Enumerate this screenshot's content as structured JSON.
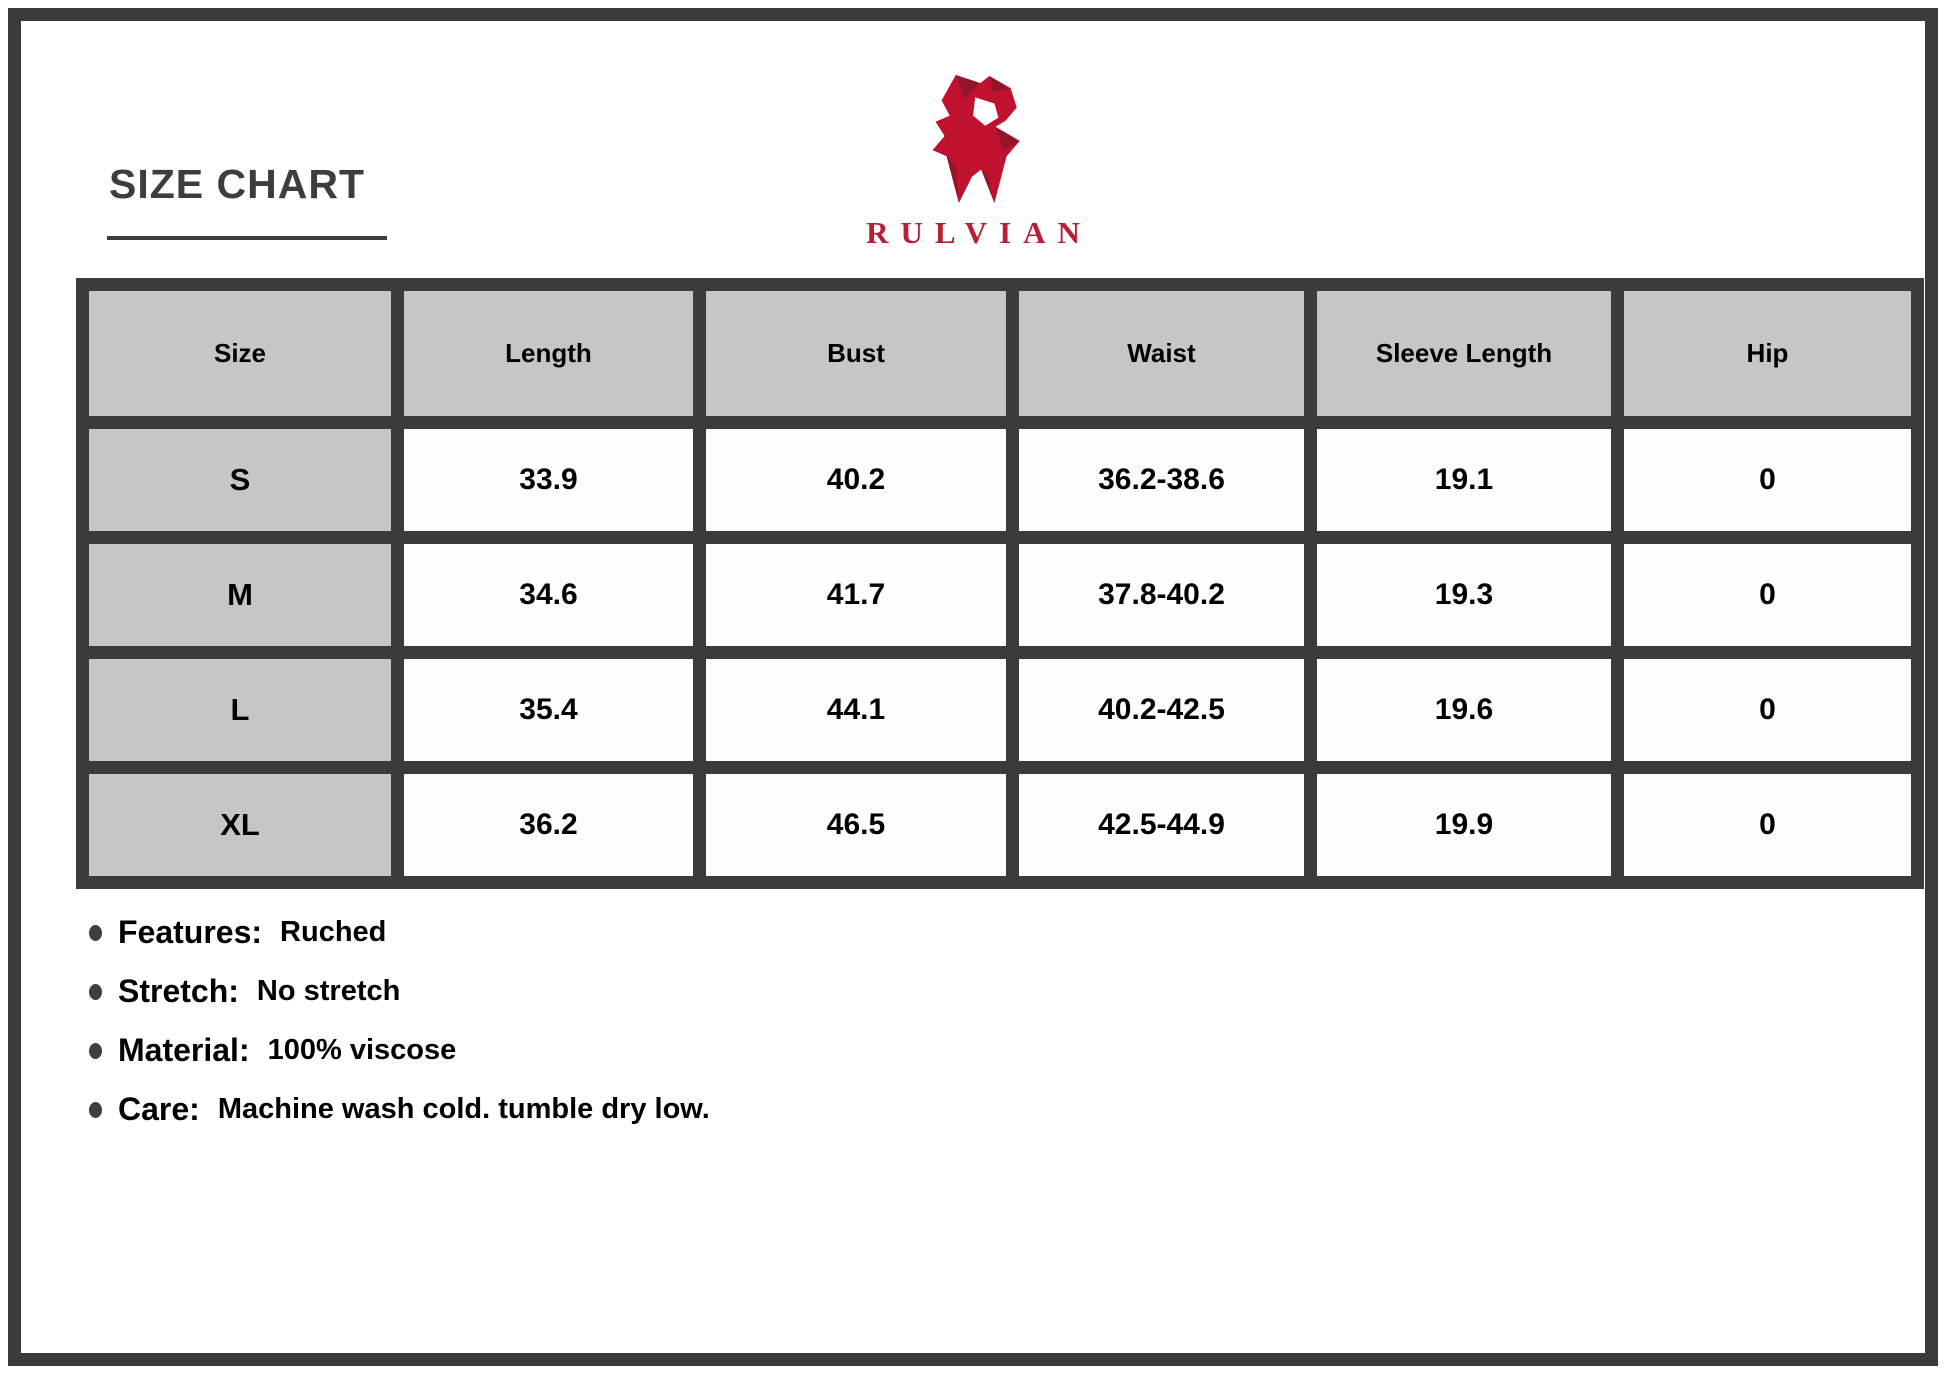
{
  "page": {
    "title": "SIZE CHART",
    "brand": "RULVIAN"
  },
  "colors": {
    "accent_red": "#bf1b2f",
    "frame_dark": "#3b3b3b",
    "header_gray": "#c6c6c6"
  },
  "size_table": {
    "headers": [
      "Size",
      "Length",
      "Bust",
      "Waist",
      "Sleeve Length",
      "Hip"
    ],
    "rows": [
      {
        "size": "S",
        "values": [
          "33.9",
          "40.2",
          "36.2-38.6",
          "19.1",
          "0"
        ]
      },
      {
        "size": "M",
        "values": [
          "34.6",
          "41.7",
          "37.8-40.2",
          "19.3",
          "0"
        ]
      },
      {
        "size": "L",
        "values": [
          "35.4",
          "44.1",
          "40.2-42.5",
          "19.6",
          "0"
        ]
      },
      {
        "size": "XL",
        "values": [
          "36.2",
          "46.5",
          "42.5-44.9",
          "19.9",
          "0"
        ]
      }
    ]
  },
  "details": [
    {
      "label": "Features:",
      "value": "Ruched"
    },
    {
      "label": "Stretch:",
      "value": "No stretch"
    },
    {
      "label": "Material:",
      "value": "100% viscose"
    },
    {
      "label": "Care:",
      "value": "Machine wash cold. tumble dry low."
    }
  ]
}
